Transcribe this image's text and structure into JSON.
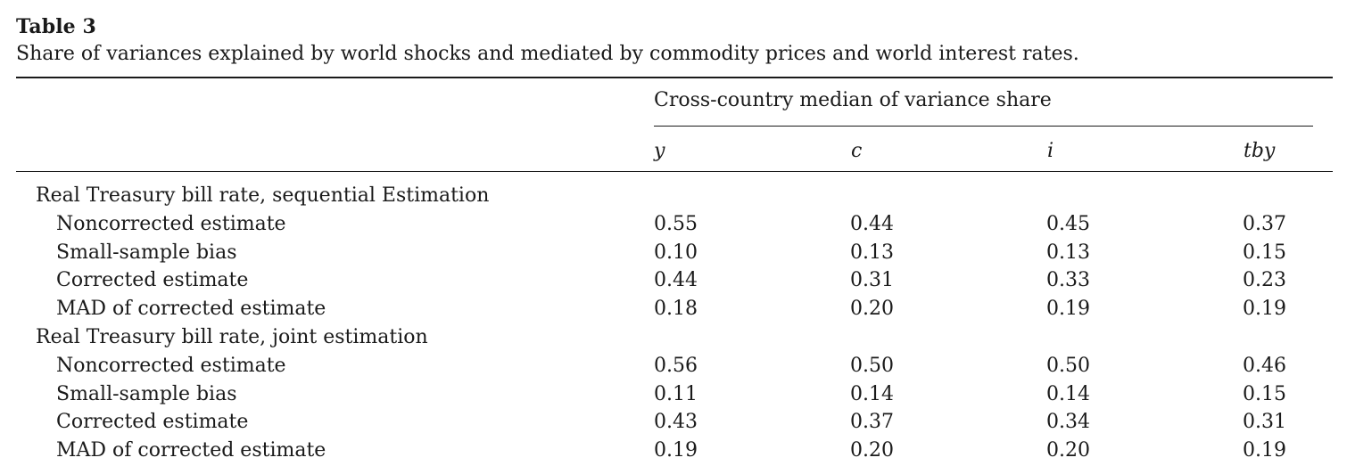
{
  "table": {
    "title": "Table 3",
    "caption": "Share of variances explained by world shocks and mediated by commodity prices and world interest rates.",
    "spanner": "Cross-country median of variance share",
    "columns": [
      "y",
      "c",
      "i",
      "tby"
    ],
    "rows": [
      {
        "kind": "group",
        "label": "Real Treasury bill rate, sequential Estimation",
        "values": [
          "",
          "",
          "",
          ""
        ]
      },
      {
        "kind": "item",
        "label": "Noncorrected estimate",
        "values": [
          "0.55",
          "0.44",
          "0.45",
          "0.37"
        ]
      },
      {
        "kind": "item",
        "label": "Small-sample bias",
        "values": [
          "0.10",
          "0.13",
          "0.13",
          "0.15"
        ]
      },
      {
        "kind": "item",
        "label": "Corrected estimate",
        "values": [
          "0.44",
          "0.31",
          "0.33",
          "0.23"
        ]
      },
      {
        "kind": "item",
        "label": "MAD of corrected estimate",
        "values": [
          "0.18",
          "0.20",
          "0.19",
          "0.19"
        ]
      },
      {
        "kind": "group",
        "label": "Real Treasury bill rate, joint estimation",
        "values": [
          "",
          "",
          "",
          ""
        ]
      },
      {
        "kind": "item",
        "label": "Noncorrected estimate",
        "values": [
          "0.56",
          "0.50",
          "0.50",
          "0.46"
        ]
      },
      {
        "kind": "item",
        "label": "Small-sample bias",
        "values": [
          "0.11",
          "0.14",
          "0.14",
          "0.15"
        ]
      },
      {
        "kind": "item",
        "label": "Corrected estimate",
        "values": [
          "0.43",
          "0.37",
          "0.34",
          "0.31"
        ]
      },
      {
        "kind": "item",
        "label": "MAD of corrected estimate",
        "values": [
          "0.19",
          "0.20",
          "0.20",
          "0.19"
        ]
      }
    ]
  }
}
